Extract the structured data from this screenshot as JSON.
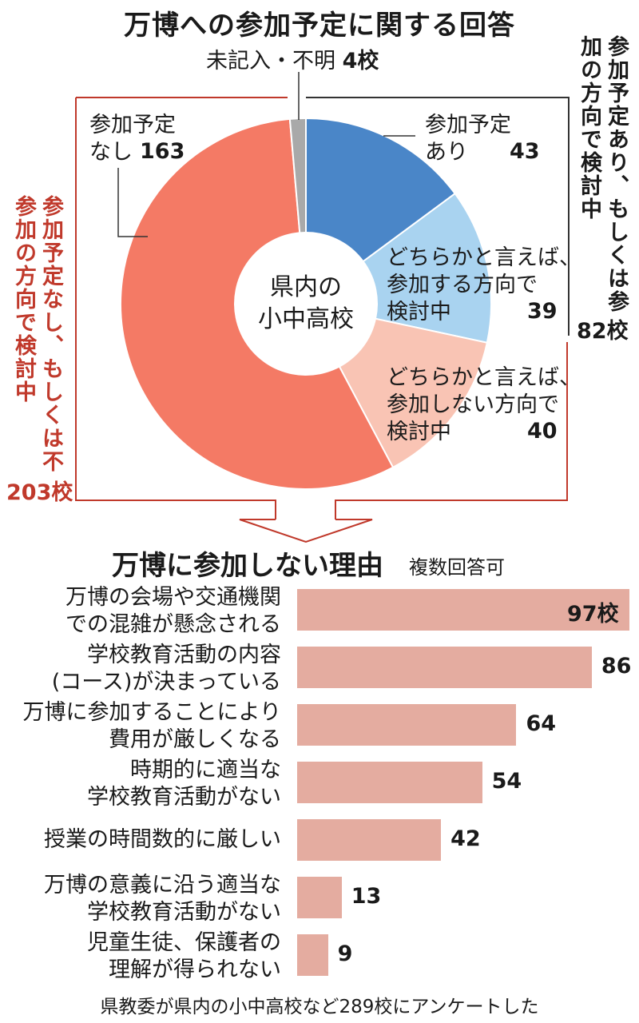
{
  "title_pie": "万博への参加予定に関する回答",
  "title_bar": "万博に参加しない理由",
  "title_bar_note": "複数回答可",
  "center_label": "県内の\n小中高校",
  "slices": [
    {
      "label": "参加予定\nあり",
      "value_text": "43"
    },
    {
      "label": "どちらかと言えば、\n参加する方向で\n検討中",
      "value_text": "39"
    },
    {
      "label": "どちらかと言えば、\n参加しない方向で\n検討中",
      "value_text": "40"
    },
    {
      "label": "参加予定\nなし",
      "value_text": "163"
    },
    {
      "label": "未記入・不明",
      "value_text": "4校"
    }
  ],
  "group_positive": {
    "label": "参加予定あり、もしくは参加の方向で検討中",
    "total": "82校"
  },
  "group_negative": {
    "label": "参加予定なし、もしくは不参加の方向で検討中",
    "total": "203校"
  },
  "bar_labels": [
    "万博の会場や交通機関\nでの混雑が懸念される",
    "学校教育活動の内容\n(コース)が決まっている",
    "万博に参加することにより\n費用が厳しくなる",
    "時期的に適当な\n学校教育活動がない",
    "授業の時間数的に厳しい",
    "万博の意義に沿う適当な\n学校教育活動がない",
    "児童生徒、保護者の\n理解が得られない"
  ],
  "bar_value_labels": [
    "97校",
    "86",
    "64",
    "54",
    "42",
    "13",
    "9"
  ],
  "footnote": "県教委が県内の小中高校など289校にアンケートした",
  "colors": {
    "participate": "#4a86c8",
    "lean_participate": "#a9d3f0",
    "lean_not": "#f9c4b4",
    "not_participate": "#f47a65",
    "unknown": "#a9a9a9",
    "bar": "#e4aca0",
    "accent_red": "#c0392b"
  },
  "chart_data": [
    {
      "type": "pie",
      "title": "万博への参加予定に関する回答",
      "categories": [
        "参加予定あり",
        "どちらかと言えば、参加する方向で検討中",
        "どちらかと言えば、参加しない方向で検討中",
        "参加予定なし",
        "未記入・不明"
      ],
      "values": [
        43,
        39,
        40,
        163,
        4
      ]
    },
    {
      "type": "bar",
      "title": "万博に参加しない理由",
      "categories": [
        "万博の会場や交通機関での混雑が懸念される",
        "学校教育活動の内容(コース)が決まっている",
        "万博に参加することにより費用が厳しくなる",
        "時期的に適当な学校教育活動がない",
        "授業の時間数的に厳しい",
        "万博の意義に沿う適当な学校教育活動がない",
        "児童生徒、保護者の理解が得られない"
      ],
      "values": [
        97,
        86,
        64,
        54,
        42,
        13,
        9
      ],
      "xlim": [
        0,
        97
      ]
    }
  ]
}
